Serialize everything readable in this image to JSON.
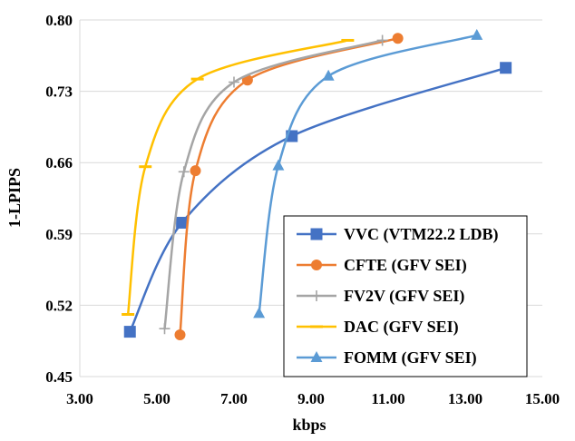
{
  "chart_data": {
    "type": "line",
    "xlabel": "kbps",
    "ylabel": "1-LPIPS",
    "xlim": [
      3.0,
      15.0
    ],
    "ylim": [
      0.45,
      0.8
    ],
    "x_ticks": [
      "3.00",
      "5.00",
      "7.00",
      "9.00",
      "11.00",
      "13.00",
      "15.00"
    ],
    "y_ticks": [
      "0.45",
      "0.52",
      "0.59",
      "0.66",
      "0.73",
      "0.80"
    ],
    "grid": "horizontal",
    "legend_position": "bottom-right",
    "series": [
      {
        "name": "VVC (VTM22.2 LDB)",
        "color": "#4472C4",
        "marker": "square",
        "x": [
          4.3,
          5.65,
          8.5,
          14.05
        ],
        "y": [
          0.494,
          0.601,
          0.686,
          0.753
        ]
      },
      {
        "name": "CFTE (GFV SEI)",
        "color": "#ED7D31",
        "marker": "circle",
        "x": [
          5.6,
          6.0,
          7.35,
          11.25
        ],
        "y": [
          0.491,
          0.652,
          0.741,
          0.782
        ]
      },
      {
        "name": "FV2V (GFV SEI)",
        "color": "#A5A5A5",
        "marker": "plus",
        "x": [
          5.2,
          5.7,
          7.0,
          10.85
        ],
        "y": [
          0.497,
          0.651,
          0.739,
          0.78
        ]
      },
      {
        "name": "DAC (GFV SEI)",
        "color": "#FFC000",
        "marker": "dash",
        "x": [
          4.25,
          4.7,
          6.05,
          9.95
        ],
        "y": [
          0.511,
          0.656,
          0.742,
          0.78
        ]
      },
      {
        "name": "FOMM (GFV SEI)",
        "color": "#5B9BD5",
        "marker": "triangle",
        "x": [
          7.65,
          8.15,
          9.45,
          13.3
        ],
        "y": [
          0.512,
          0.657,
          0.745,
          0.785
        ]
      }
    ]
  }
}
